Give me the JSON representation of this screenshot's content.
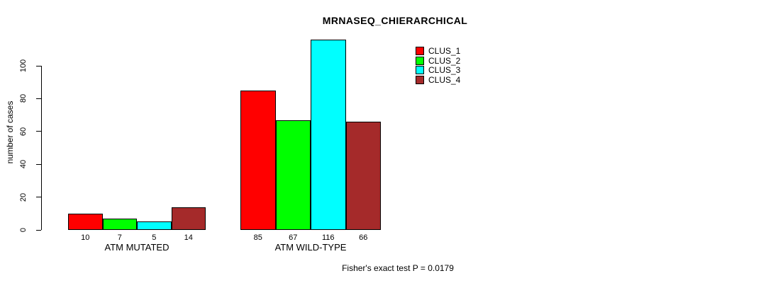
{
  "chart_data": {
    "type": "bar",
    "title": "MRNASEQ_CHIERARCHICAL",
    "ylabel": "number of cases",
    "xlabel": "",
    "groups": [
      "ATM MUTATED",
      "ATM WILD-TYPE"
    ],
    "series": [
      {
        "name": "CLUS_1",
        "color": "#ff0000",
        "values": [
          10,
          85
        ]
      },
      {
        "name": "CLUS_2",
        "color": "#00ff00",
        "values": [
          7,
          67
        ]
      },
      {
        "name": "CLUS_3",
        "color": "#00ffff",
        "values": [
          5,
          116
        ]
      },
      {
        "name": "CLUS_4",
        "color": "#a52a2a",
        "values": [
          14,
          66
        ]
      }
    ],
    "bar_value_labels": [
      [
        "10",
        "7",
        "5",
        "14"
      ],
      [
        "85",
        "67",
        "116",
        "66"
      ]
    ],
    "yticks": [
      0,
      20,
      40,
      60,
      80,
      100
    ],
    "ylim": [
      0,
      116
    ],
    "grid": false,
    "legend_position": "top-right",
    "annotation": "Fisher's exact test P = 0.0179"
  },
  "colors": {
    "background": "#ffffff",
    "axis": "#000000",
    "bar_border": "#000000"
  }
}
